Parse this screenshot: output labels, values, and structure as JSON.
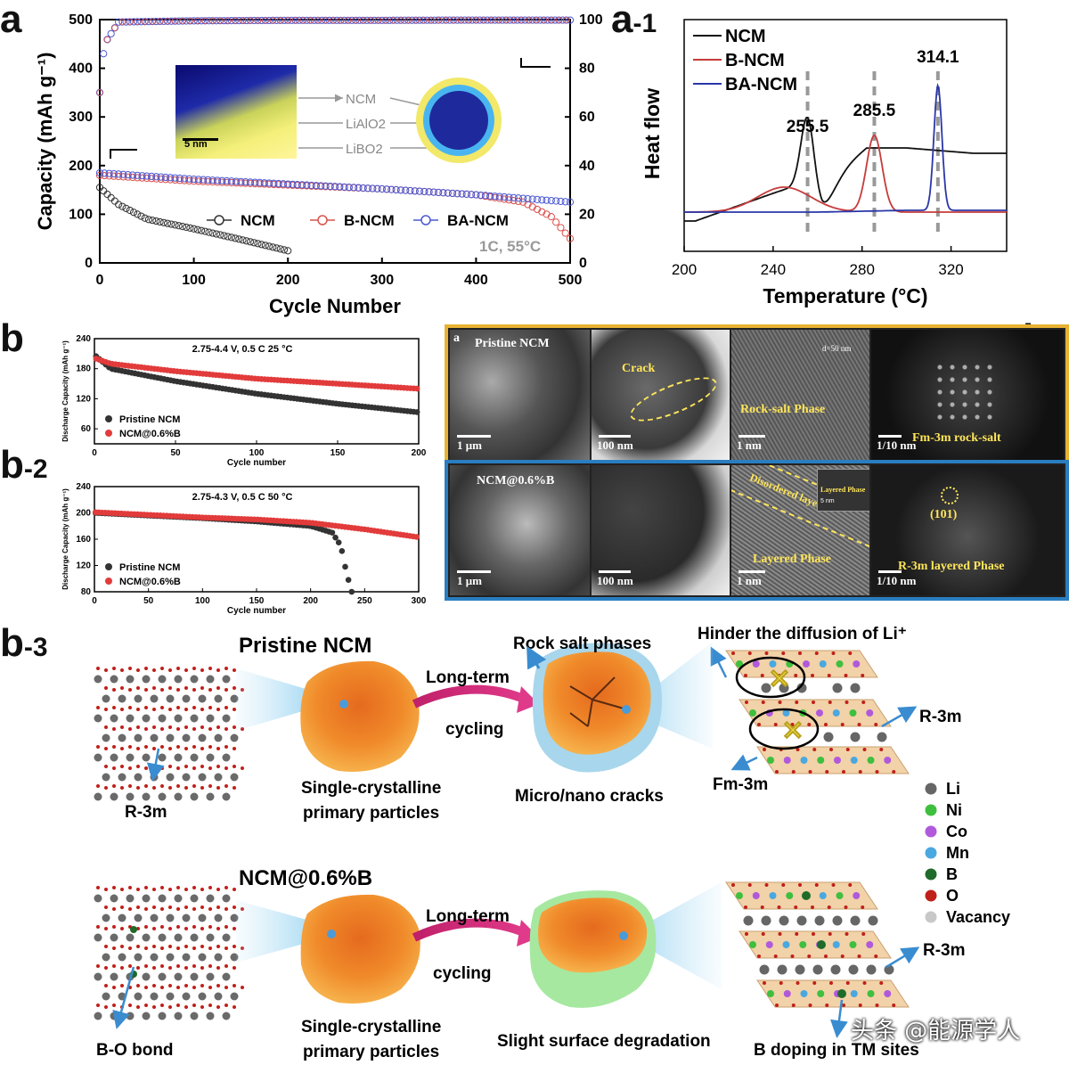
{
  "panels": {
    "a": "a",
    "a1_main": "a",
    "a1_sub": "-1",
    "b": "b",
    "b1_main": "b",
    "b1_sub": "-1",
    "b2_main": "b",
    "b2_sub": "-2",
    "b3_main": "b",
    "b3_sub": "-3"
  },
  "colors": {
    "ncm": "#333333",
    "bncm": "#d9534f",
    "bancm": "#4d5ad1"
  },
  "inset_a": {
    "scale": "5 nm",
    "labels": [
      "NCM",
      "LiAlO2",
      "LiBO2"
    ]
  },
  "b1": {
    "row1": {
      "tag": "a",
      "sem_label": "Pristine NCM",
      "sem_scale": "1 μm",
      "tem_label": "Crack",
      "tem_scale": "100 nm",
      "hr_label": "Rock-salt Phase",
      "hr_scale": "1 nm",
      "hr_note": "d=50 nm",
      "fft_label": "Fm-3m rock-salt",
      "fft_scale": "1/10 nm"
    },
    "row2": {
      "sem_label": "NCM@0.6%B",
      "sem_scale": "1 μm",
      "tem_scale": "100 nm",
      "hr_label": "Layered Phase",
      "hr_label2": "Disordered layer",
      "hr_inset": "Layered Phase",
      "hr_inset_scale": "5 nm",
      "hr_scale": "1 nm",
      "fft_label": "R-3m layered Phase",
      "fft_index": "(101)",
      "fft_scale": "1/10 nm"
    }
  },
  "b3": {
    "top": {
      "title": "Pristine NCM",
      "lattice_label": "R-3m",
      "particle_caption_1": "Single-crystalline",
      "particle_caption_2": "primary particles",
      "arrow_label_1": "Long-term",
      "arrow_label_2": "cycling",
      "cracked_top": "Rock salt phases",
      "cracked_caption": "Micro/nano cracks",
      "right_title": "Hinder the diffusion of Li⁺",
      "right_label_1": "R-3m",
      "right_label_2": "Fm-3m"
    },
    "bottom": {
      "title": "NCM@0.6%B",
      "lattice_label": "B-O bond",
      "particle_caption_1": "Single-crystalline",
      "particle_caption_2": "primary particles",
      "arrow_label_1": "Long-term",
      "arrow_label_2": "cycling",
      "coated_caption": "Slight surface degradation",
      "right_label": "R-3m",
      "right_caption": "B doping in TM sites"
    },
    "legend": [
      {
        "name": "Li",
        "color": "#666666"
      },
      {
        "name": "Ni",
        "color": "#3fbf3f"
      },
      {
        "name": "Co",
        "color": "#b05adb"
      },
      {
        "name": "Mn",
        "color": "#4aa8e0"
      },
      {
        "name": "B",
        "color": "#1f6b2a"
      },
      {
        "name": "O",
        "color": "#c0201a"
      },
      {
        "name": "Vacancy",
        "color": "#c8c8c8"
      }
    ]
  },
  "watermark": "头条 @能源学人",
  "chart_data": [
    {
      "id": "a",
      "type": "scatter",
      "xlabel": "Cycle Number",
      "ylabel": "Capacity (mAh g⁻¹)",
      "ylabel_right": "Coulombic efficiency (%)",
      "xlim": [
        0,
        500
      ],
      "ylim": [
        0,
        500
      ],
      "ylim_right": [
        0,
        100
      ],
      "xticks": [
        0,
        100,
        200,
        300,
        400,
        500
      ],
      "yticks": [
        0,
        100,
        200,
        300,
        400,
        500
      ],
      "yticks_right": [
        0,
        20,
        40,
        60,
        80,
        100
      ],
      "annotation": "1C, 55°C",
      "legend": [
        "NCM",
        "B-NCM",
        "BA-NCM"
      ],
      "series": [
        {
          "name": "NCM",
          "axis": "left",
          "x": [
            0,
            20,
            50,
            100,
            150,
            200
          ],
          "y": [
            155,
            120,
            90,
            70,
            48,
            25
          ]
        },
        {
          "name": "B-NCM",
          "axis": "left",
          "x": [
            0,
            100,
            200,
            300,
            400,
            450,
            480,
            500
          ],
          "y": [
            180,
            168,
            160,
            152,
            140,
            125,
            95,
            50
          ]
        },
        {
          "name": "BA-NCM",
          "axis": "left",
          "x": [
            0,
            100,
            200,
            300,
            400,
            500
          ],
          "y": [
            185,
            172,
            162,
            152,
            140,
            125
          ]
        },
        {
          "name": "CE",
          "axis": "right",
          "x": [
            0,
            5,
            20,
            100,
            200,
            300,
            400,
            500
          ],
          "y": [
            70,
            90,
            99,
            99.5,
            99.7,
            99.7,
            99.8,
            99.8
          ]
        }
      ]
    },
    {
      "id": "a-1",
      "type": "line",
      "xlabel": "Temperature (°C)",
      "ylabel": "Heat flow",
      "xlim": [
        200,
        345
      ],
      "xticks": [
        200,
        240,
        280,
        320
      ],
      "legend": [
        "NCM",
        "B-NCM",
        "BA-NCM"
      ],
      "peaks": [
        {
          "series": "NCM",
          "x": 255.5,
          "label": "255.5"
        },
        {
          "series": "B-NCM",
          "x": 285.5,
          "label": "285.5"
        },
        {
          "series": "BA-NCM",
          "x": 314.1,
          "label": "314.1"
        }
      ]
    },
    {
      "id": "b",
      "type": "scatter",
      "title": "2.75-4.4 V, 0.5 C 25 °C",
      "xlabel": "Cycle number",
      "ylabel": "Discharge Capacity (mAh g⁻¹)",
      "xlim": [
        0,
        200
      ],
      "ylim": [
        30,
        240
      ],
      "xticks": [
        0,
        50,
        100,
        150,
        200
      ],
      "yticks": [
        60,
        120,
        180,
        240
      ],
      "legend": [
        "Pristine NCM",
        "NCM@0.6%B"
      ],
      "series": [
        {
          "name": "Pristine NCM",
          "x": [
            1,
            10,
            50,
            100,
            150,
            200
          ],
          "y": [
            205,
            180,
            155,
            130,
            110,
            93
          ]
        },
        {
          "name": "NCM@0.6%B",
          "x": [
            1,
            10,
            50,
            100,
            150,
            200
          ],
          "y": [
            200,
            190,
            175,
            160,
            150,
            140
          ]
        }
      ]
    },
    {
      "id": "b-2",
      "type": "scatter",
      "title": "2.75-4.3 V, 0.5 C 50 °C",
      "xlabel": "Cycle number",
      "ylabel": "Discharge Capacity (mAh g⁻¹)",
      "xlim": [
        0,
        300
      ],
      "ylim": [
        80,
        240
      ],
      "xticks": [
        0,
        50,
        100,
        150,
        200,
        250,
        300
      ],
      "yticks": [
        80,
        120,
        160,
        200,
        240
      ],
      "legend": [
        "Pristine NCM",
        "NCM@0.6%B"
      ],
      "series": [
        {
          "name": "Pristine NCM",
          "x": [
            1,
            50,
            100,
            150,
            200,
            220,
            228,
            233,
            238
          ],
          "y": [
            200,
            196,
            192,
            187,
            180,
            170,
            150,
            110,
            80
          ]
        },
        {
          "name": "NCM@0.6%B",
          "x": [
            1,
            50,
            100,
            150,
            200,
            250,
            300
          ],
          "y": [
            201,
            197,
            193,
            190,
            185,
            175,
            163
          ]
        }
      ]
    }
  ]
}
